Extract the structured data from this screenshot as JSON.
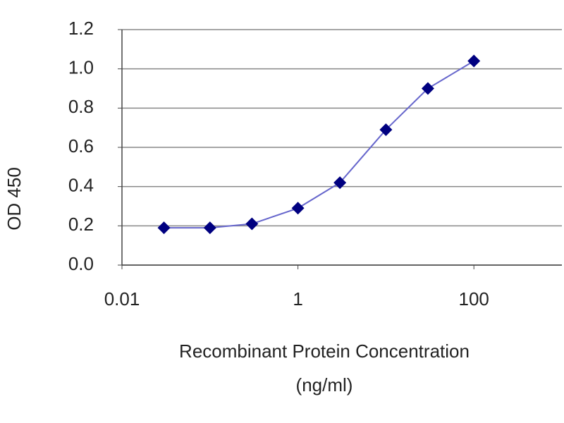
{
  "chart_data": {
    "type": "line",
    "x_label": [
      "Recombinant Protein Concentration",
      "(ng/ml)"
    ],
    "y_label": "OD 450",
    "x": [
      0.03,
      0.1,
      0.3,
      1,
      3,
      10,
      30,
      100
    ],
    "series": [
      {
        "color": "#000080",
        "line_color": "#6666cc",
        "values": [
          0.19,
          0.19,
          0.21,
          0.29,
          0.42,
          0.69,
          0.9,
          1.04
        ]
      }
    ],
    "xlim": [
      0.01,
      1000
    ],
    "xticks": [
      0.01,
      1,
      100
    ],
    "x_log": true,
    "ylim": [
      0,
      1.2
    ],
    "yticks": [
      {
        "value": 0,
        "label": "0.0"
      },
      0.2,
      0.4,
      0.6,
      0.8,
      {
        "value": 1,
        "label": "1.0"
      },
      1.2
    ],
    "grid": true
  }
}
